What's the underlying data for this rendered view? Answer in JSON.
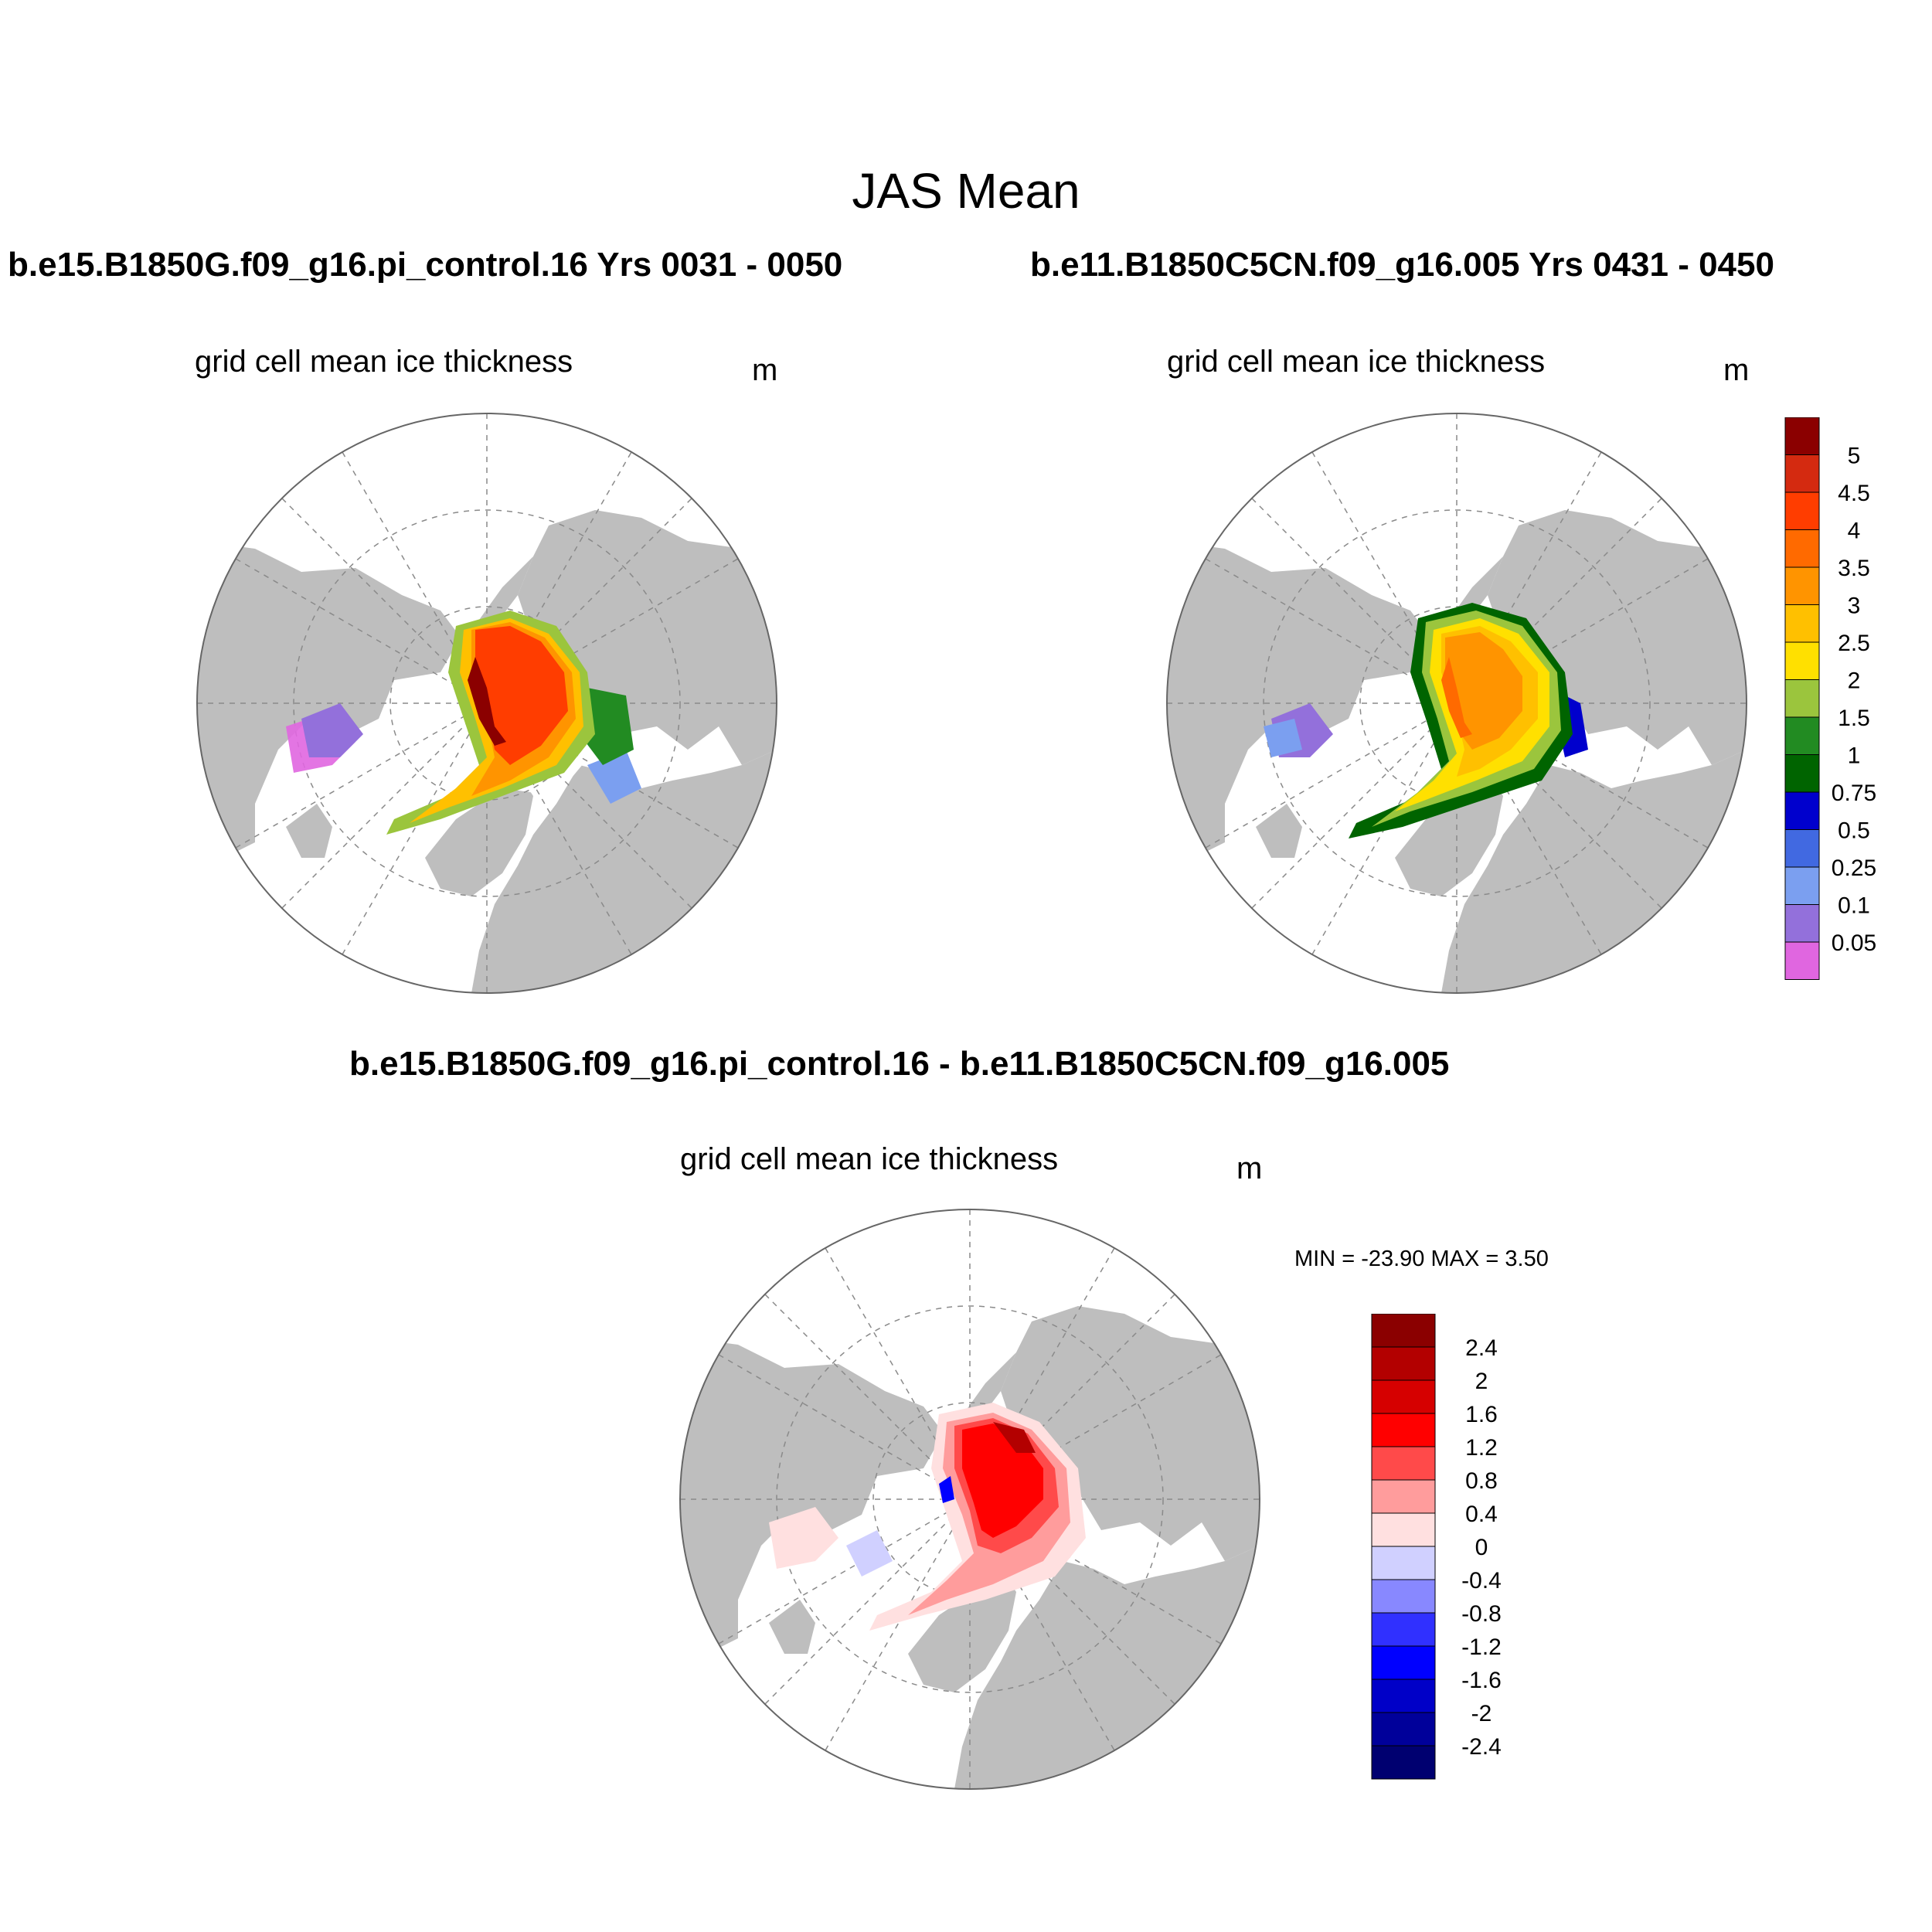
{
  "title": "JAS Mean",
  "panels": [
    {
      "case_title": "b.e15.B1850G.f09_g16.pi_control.16  Yrs 0031 - 0050",
      "variable": "grid cell mean ice thickness",
      "units": "m"
    },
    {
      "case_title": "b.e11.B1850C5CN.f09_g16.005  Yrs 0431 - 0450",
      "variable": "grid cell mean ice thickness",
      "units": "m"
    },
    {
      "case_title": "b.e15.B1850G.f09_g16.pi_control.16 - b.e11.B1850C5CN.f09_g16.005",
      "variable": "grid cell mean ice thickness",
      "units": "m",
      "minmax": "MIN = -23.90 MAX =   3.50"
    }
  ],
  "colorbars": {
    "thickness": {
      "labels": [
        "5",
        "4.5",
        "4",
        "3.5",
        "3",
        "2.5",
        "2",
        "1.5",
        "1",
        "0.75",
        "0.5",
        "0.25",
        "0.1",
        "0.05"
      ],
      "colors": [
        "#8b0000",
        "#d42a10",
        "#ff3d00",
        "#ff6a00",
        "#ff9400",
        "#ffc000",
        "#ffe000",
        "#9bc53d",
        "#228b22",
        "#006400",
        "#0000cd",
        "#4169e1",
        "#7b9ff0",
        "#9370db",
        "#e066e0"
      ]
    },
    "difference": {
      "labels": [
        "2.4",
        "2",
        "1.6",
        "1.2",
        "0.8",
        "0.4",
        "0",
        "-0.4",
        "-0.8",
        "-1.2",
        "-1.6",
        "-2",
        "-2.4"
      ],
      "colors": [
        "#8b0000",
        "#b30000",
        "#d60000",
        "#ff0000",
        "#ff4a4a",
        "#ff9c9c",
        "#ffe0e0",
        "#d0d0ff",
        "#8888ff",
        "#3030ff",
        "#0000ff",
        "#0000c8",
        "#00009a",
        "#000070"
      ]
    }
  },
  "map_style": {
    "land": "#bebebe",
    "ocean": "#ffffff",
    "grid_line": "#8a8a8a"
  }
}
